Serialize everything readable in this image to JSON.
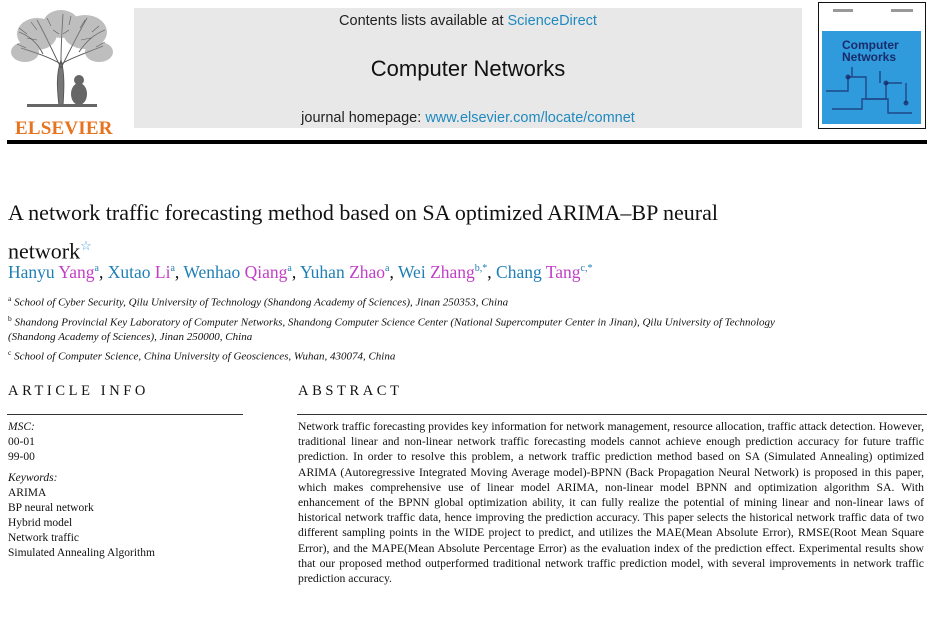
{
  "header": {
    "publisher": "ELSEVIER",
    "contents_prefix": "Contents lists available at ",
    "contents_link": "ScienceDirect",
    "journal_title": "Computer Networks",
    "homepage_prefix": "journal homepage: ",
    "homepage_link": "www.elsevier.com/locate/comnet",
    "cover_title_line1": "Computer",
    "cover_title_line2": "Networks"
  },
  "article": {
    "title": "A network traffic forecasting method based on SA optimized ARIMA–BP neural network",
    "title_note_mark": "☆",
    "authors": [
      {
        "given": "Hanyu",
        "family": "Yang",
        "sup": "a",
        "sep": ", "
      },
      {
        "given": "Xutao",
        "family": "Li",
        "sup": "a",
        "sep": ", "
      },
      {
        "given": "Wenhao",
        "family": "Qiang",
        "sup": "a",
        "sep": ", "
      },
      {
        "given": "Yuhan",
        "family": "Zhao",
        "sup": "a",
        "sep": ", "
      },
      {
        "given": "Wei",
        "family": "Zhang",
        "sup": "b,*",
        "sep": ", "
      },
      {
        "given": "Chang",
        "family": "Tang",
        "sup": "c,*",
        "sep": ""
      }
    ],
    "affiliations": [
      {
        "mark": "a",
        "text": "School of Cyber Security, Qilu University of Technology (Shandong Academy of Sciences), Jinan 250353, China"
      },
      {
        "mark": "b",
        "text": "Shandong Provincial Key Laboratory of Computer Networks, Shandong Computer Science Center (National Supercomputer Center in Jinan), Qilu University of Technology (Shandong Academy of Sciences), Jinan 250000, China"
      },
      {
        "mark": "c",
        "text": "School of Computer Science, China University of Geosciences, Wuhan, 430074, China"
      }
    ]
  },
  "article_info": {
    "heading": "ARTICLE INFO",
    "msc_label": "MSC:",
    "msc_codes": [
      "00-01",
      "99-00"
    ],
    "keywords_label": "Keywords:",
    "keywords": [
      "ARIMA",
      "BP neural network",
      "Hybrid model",
      "Network traffic",
      "Simulated Annealing Algorithm"
    ]
  },
  "abstract": {
    "heading": "ABSTRACT",
    "text": "Network traffic forecasting provides key information for network management, resource allocation, traffic attack detection. However, traditional linear and non-linear network traffic forecasting models cannot achieve enough prediction accuracy for future traffic prediction. In order to resolve this problem, a network traffic prediction method based on SA (Simulated Annealing) optimized ARIMA (Autoregressive Integrated Moving Average model)-BPNN (Back Propagation Neural Network) is proposed in this paper, which makes comprehensive use of linear model ARIMA, non-linear model BPNN and optimization algorithm SA. With enhancement of the BPNN global optimization ability, it can fully realize the potential of mining linear and non-linear laws of historical network traffic data, hence improving the prediction accuracy. This paper selects the historical network traffic data of two different sampling points in the WIDE project to predict, and utilizes the MAE(Mean Absolute Error), RMSE(Root Mean Square Error), and the MAPE(Mean Absolute Percentage Error) as the evaluation index of the prediction effect. Experimental results show that our proposed method outperformed traditional network traffic prediction model, with several improvements in network traffic prediction accuracy."
  }
}
